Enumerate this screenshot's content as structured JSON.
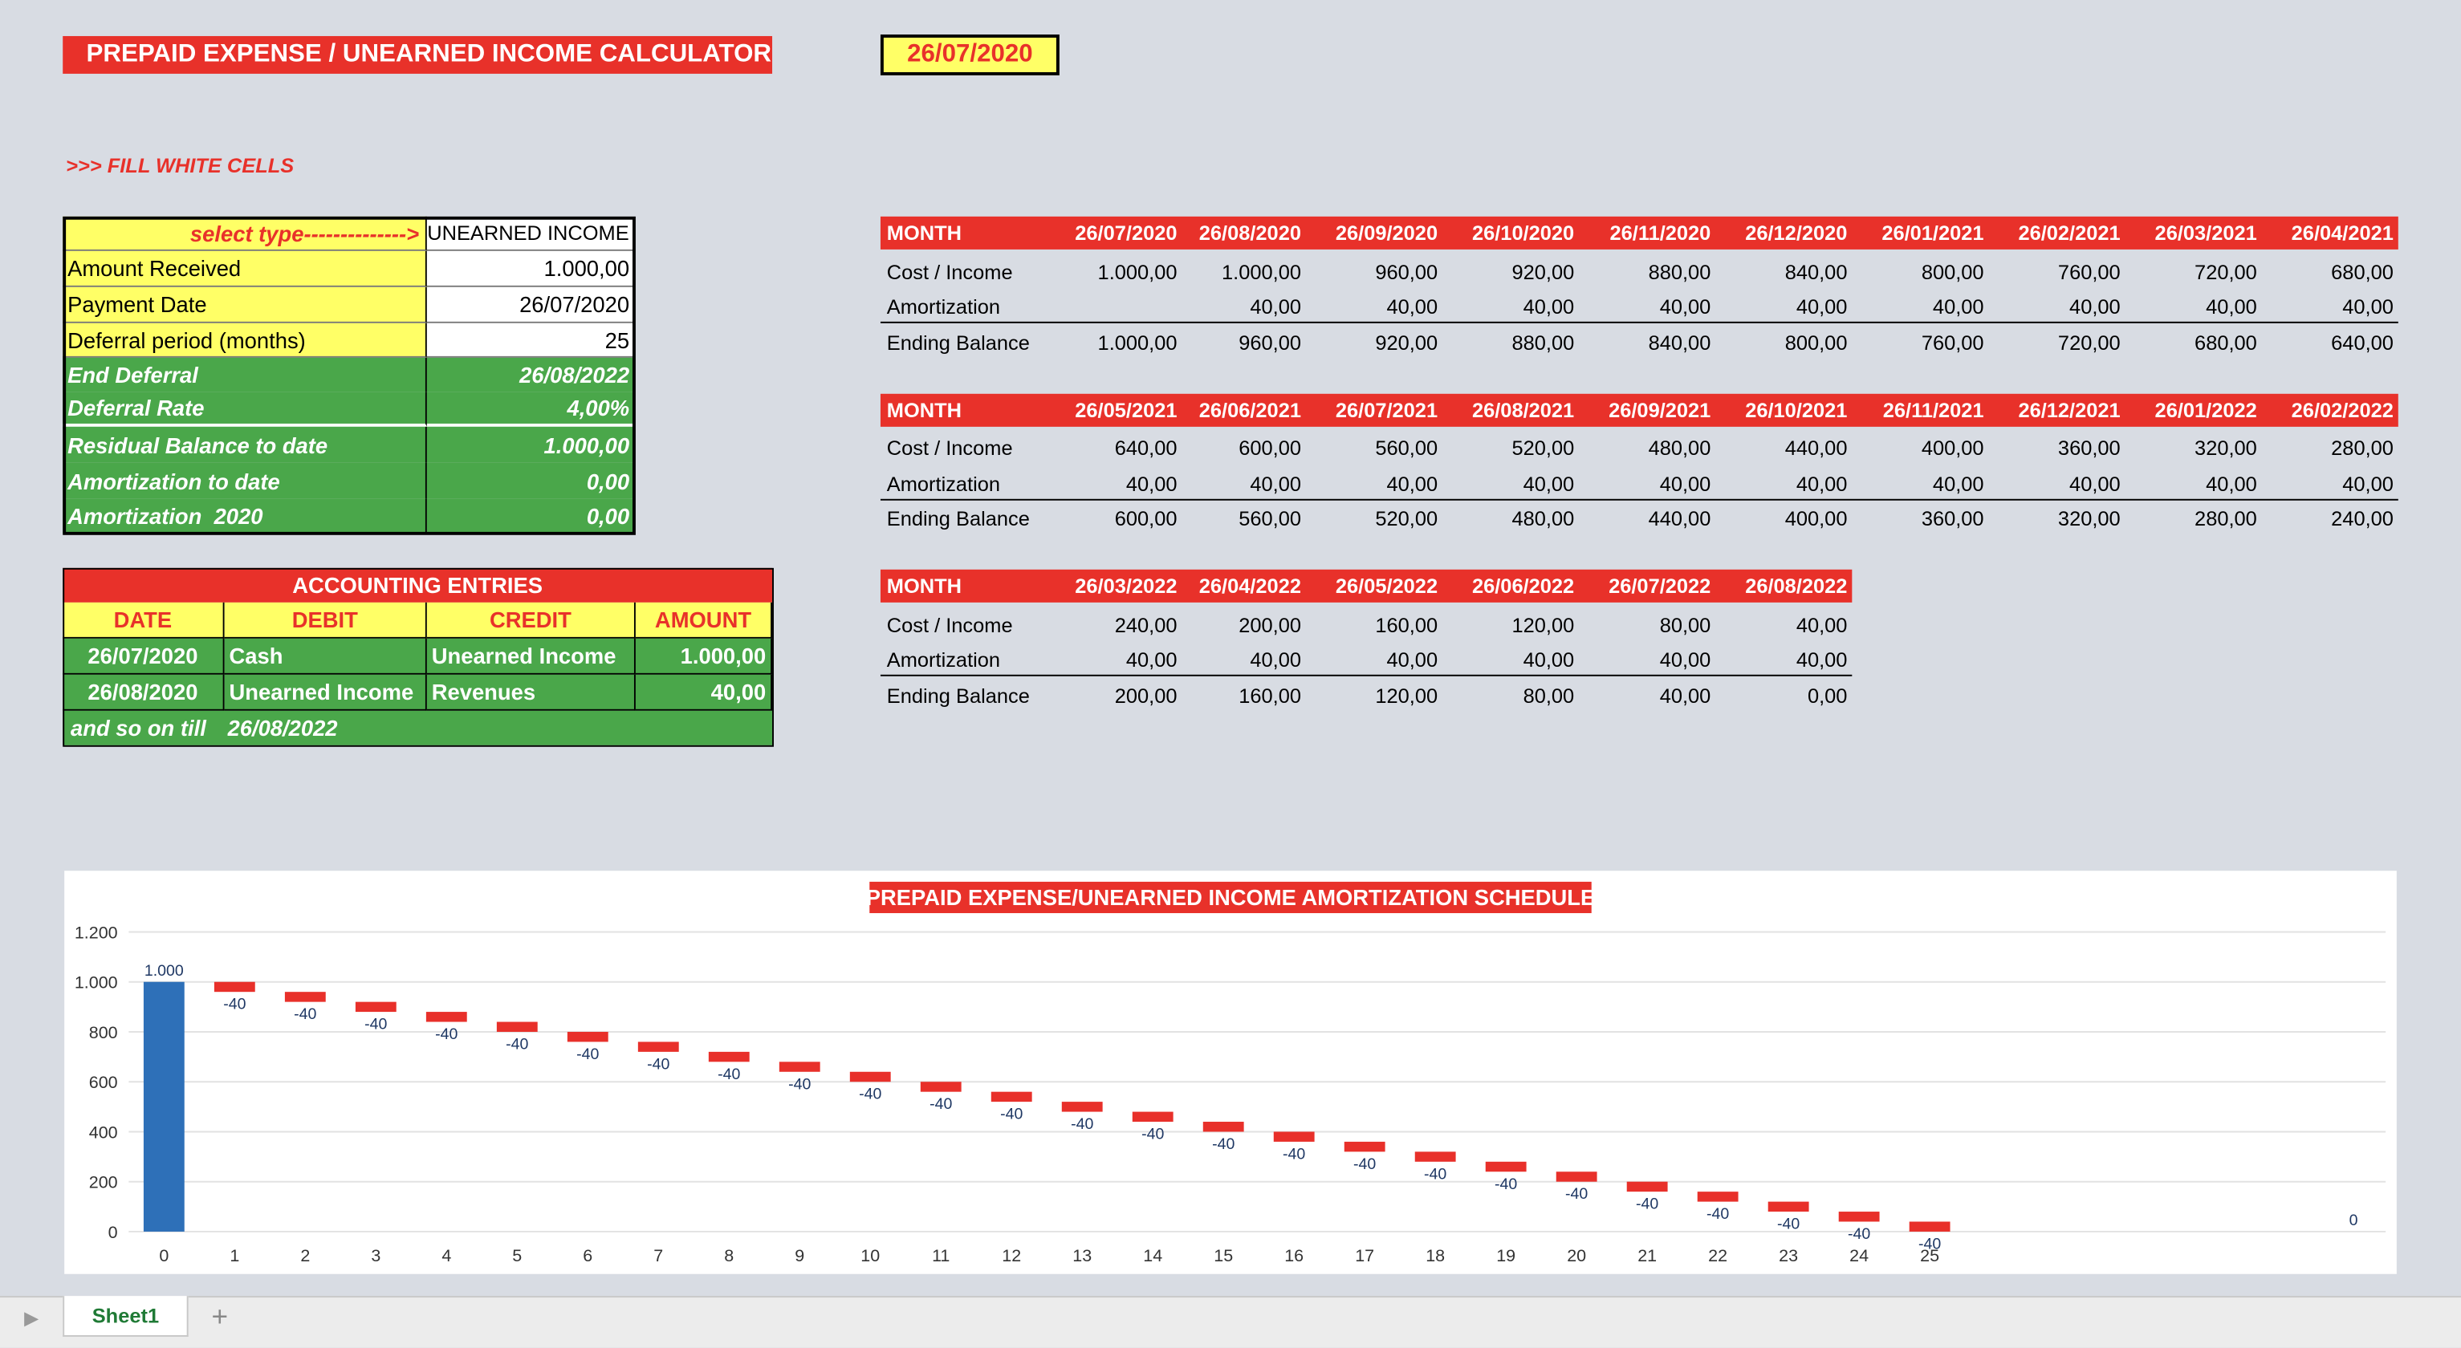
{
  "header": {
    "title": "PREPAID EXPENSE / UNEARNED INCOME CALCULATOR",
    "date": "26/07/2020",
    "instruction": ">>> FILL WHITE CELLS"
  },
  "inputs": {
    "rows": [
      [
        "select type-------------->",
        "UNEARNED INCOME"
      ],
      [
        "Amount Received",
        "1.000,00"
      ],
      [
        "Payment Date",
        "26/07/2020"
      ],
      [
        "Deferral period (months)",
        "25"
      ],
      [
        "End Deferral",
        "26/08/2022"
      ],
      [
        "Deferral Rate",
        "4,00%"
      ],
      [
        "Residual Balance to date",
        "1.000,00"
      ],
      [
        "Amortization to date",
        "0,00"
      ],
      [
        "Amortization  2020",
        "0,00"
      ]
    ]
  },
  "entries": {
    "title": "ACCOUNTING ENTRIES",
    "headers": [
      "DATE",
      "DEBIT",
      "CREDIT",
      "AMOUNT"
    ],
    "rows": [
      [
        "26/07/2020",
        "Cash",
        "Unearned Income",
        "1.000,00"
      ],
      [
        "26/08/2020",
        "Unearned Income",
        "Revenues",
        "40,00"
      ]
    ],
    "footer": [
      "and so on till",
      "26/08/2022"
    ]
  },
  "schedule": [
    {
      "header": "MONTH",
      "dates": [
        "26/07/2020",
        "26/08/2020",
        "26/09/2020",
        "26/10/2020",
        "26/11/2020",
        "26/12/2020",
        "26/01/2021",
        "26/02/2021",
        "26/03/2021",
        "26/04/2021"
      ],
      "rows": [
        {
          "label": "Cost / Income",
          "values": [
            "1.000,00",
            "1.000,00",
            "960,00",
            "920,00",
            "880,00",
            "840,00",
            "800,00",
            "760,00",
            "720,00",
            "680,00"
          ]
        },
        {
          "label": "Amortization",
          "values": [
            null,
            "40,00",
            "40,00",
            "40,00",
            "40,00",
            "40,00",
            "40,00",
            "40,00",
            "40,00",
            "40,00"
          ]
        },
        {
          "label": "Ending Balance",
          "values": [
            "1.000,00",
            "960,00",
            "920,00",
            "880,00",
            "840,00",
            "800,00",
            "760,00",
            "720,00",
            "680,00",
            "640,00"
          ]
        }
      ]
    },
    {
      "header": "MONTH",
      "dates": [
        "26/05/2021",
        "26/06/2021",
        "26/07/2021",
        "26/08/2021",
        "26/09/2021",
        "26/10/2021",
        "26/11/2021",
        "26/12/2021",
        "26/01/2022",
        "26/02/2022"
      ],
      "rows": [
        {
          "label": "Cost / Income",
          "values": [
            "640,00",
            "600,00",
            "560,00",
            "520,00",
            "480,00",
            "440,00",
            "400,00",
            "360,00",
            "320,00",
            "280,00"
          ]
        },
        {
          "label": "Amortization",
          "values": [
            "40,00",
            "40,00",
            "40,00",
            "40,00",
            "40,00",
            "40,00",
            "40,00",
            "40,00",
            "40,00",
            "40,00"
          ]
        },
        {
          "label": "Ending Balance",
          "values": [
            "600,00",
            "560,00",
            "520,00",
            "480,00",
            "440,00",
            "400,00",
            "360,00",
            "320,00",
            "280,00",
            "240,00"
          ]
        }
      ]
    },
    {
      "header": "MONTH",
      "dates": [
        "26/03/2022",
        "26/04/2022",
        "26/05/2022",
        "26/06/2022",
        "26/07/2022",
        "26/08/2022"
      ],
      "rows": [
        {
          "label": "Cost / Income",
          "values": [
            "240,00",
            "200,00",
            "160,00",
            "120,00",
            "80,00",
            "40,00"
          ]
        },
        {
          "label": "Amortization",
          "values": [
            "40,00",
            "40,00",
            "40,00",
            "40,00",
            "40,00",
            "40,00"
          ]
        },
        {
          "label": "Ending Balance",
          "values": [
            "200,00",
            "160,00",
            "120,00",
            "80,00",
            "40,00",
            "0,00"
          ]
        }
      ]
    }
  ],
  "chart_data": {
    "type": "waterfall",
    "title": "PREPAID EXPENSE/UNEARNED INCOME AMORTIZATION SCHEDULE",
    "categories": [
      0,
      1,
      2,
      3,
      4,
      5,
      6,
      7,
      8,
      9,
      10,
      11,
      12,
      13,
      14,
      15,
      16,
      17,
      18,
      19,
      20,
      21,
      22,
      23,
      24,
      25,
      null,
      null,
      null,
      null,
      null,
      null
    ],
    "values": [
      1000,
      -40,
      -40,
      -40,
      -40,
      -40,
      -40,
      -40,
      -40,
      -40,
      -40,
      -40,
      -40,
      -40,
      -40,
      -40,
      -40,
      -40,
      -40,
      -40,
      -40,
      -40,
      -40,
      -40,
      -40,
      -40,
      null,
      null,
      null,
      null,
      null,
      0
    ],
    "value_labels": [
      "1.000",
      "-40",
      "-40",
      "-40",
      "-40",
      "-40",
      "-40",
      "-40",
      "-40",
      "-40",
      "-40",
      "-40",
      "-40",
      "-40",
      "-40",
      "-40",
      "-40",
      "-40",
      "-40",
      "-40",
      "-40",
      "-40",
      "-40",
      "-40",
      "-40",
      "-40",
      null,
      null,
      null,
      null,
      null,
      "0"
    ],
    "total_indices": [
      0,
      31
    ],
    "colors": {
      "total": "#2e70b8",
      "decrease": "#e8302a"
    },
    "ylim": [
      0,
      1200
    ],
    "yticks": [
      0,
      200,
      400,
      600,
      800,
      {
        "value": 1000,
        "label": "1.000"
      },
      {
        "value": 1200,
        "label": "1.200"
      }
    ],
    "grid": true
  },
  "tabs": {
    "sheets": [
      "Sheet1"
    ]
  }
}
